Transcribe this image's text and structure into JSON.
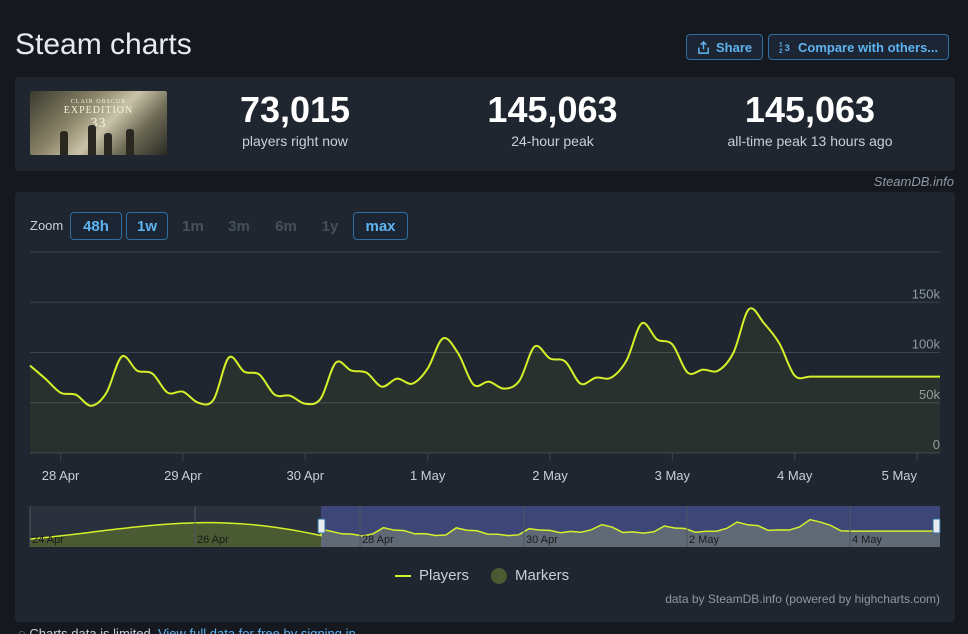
{
  "page": {
    "title": "Steam charts"
  },
  "header_buttons": {
    "share_label": "Share",
    "compare_label": "Compare with others..."
  },
  "stats": {
    "current": {
      "value": "73,015",
      "label": "players right now"
    },
    "peak24": {
      "value": "145,063",
      "label": "24-hour peak"
    },
    "alltime": {
      "value": "145,063",
      "label": "all-time peak 13 hours ago"
    }
  },
  "thumbnail": {
    "brand": "CLAIR OBSCUR",
    "title": "EXPEDITION",
    "number": "33"
  },
  "credit_top": "SteamDB.info",
  "zoom": {
    "label": "Zoom",
    "buttons": [
      {
        "label": "48h",
        "state": "enabled"
      },
      {
        "label": "1w",
        "state": "enabled"
      },
      {
        "label": "1m",
        "state": "disabled"
      },
      {
        "label": "3m",
        "state": "disabled"
      },
      {
        "label": "6m",
        "state": "disabled"
      },
      {
        "label": "1y",
        "state": "disabled"
      },
      {
        "label": "max",
        "state": "enabled"
      }
    ]
  },
  "chart_data": {
    "type": "line",
    "series": [
      {
        "name": "Players",
        "color": "#d4f12a",
        "x": [
          "27 Apr 18:00",
          "27 Apr 21:00",
          "28 Apr 00:00",
          "28 Apr 03:00",
          "28 Apr 06:00",
          "28 Apr 09:00",
          "28 Apr 12:00",
          "28 Apr 15:00",
          "28 Apr 18:00",
          "28 Apr 21:00",
          "29 Apr 00:00",
          "29 Apr 03:00",
          "29 Apr 06:00",
          "29 Apr 09:00",
          "29 Apr 12:00",
          "29 Apr 15:00",
          "29 Apr 18:00",
          "29 Apr 21:00",
          "30 Apr 00:00",
          "30 Apr 03:00",
          "30 Apr 06:00",
          "30 Apr 09:00",
          "30 Apr 12:00",
          "30 Apr 15:00",
          "30 Apr 18:00",
          "30 Apr 21:00",
          "1 May 00:00",
          "1 May 03:00",
          "1 May 06:00",
          "1 May 09:00",
          "1 May 12:00",
          "1 May 15:00",
          "1 May 18:00",
          "1 May 21:00",
          "2 May 00:00",
          "2 May 03:00",
          "2 May 06:00",
          "2 May 09:00",
          "2 May 12:00",
          "2 May 15:00",
          "2 May 18:00",
          "2 May 21:00",
          "3 May 00:00",
          "3 May 03:00",
          "3 May 06:00",
          "3 May 09:00",
          "3 May 12:00",
          "3 May 15:00",
          "3 May 18:00",
          "3 May 21:00",
          "4 May 00:00",
          "4 May 03:00",
          "4 May 06:00",
          "4 May 09:00",
          "4 May 12:00",
          "4 May 15:00",
          "4 May 18:00",
          "4 May 21:00",
          "5 May 00:00",
          "5 May 03:00",
          "5 May 06:00"
        ],
        "y": [
          87000,
          74000,
          60000,
          58000,
          47000,
          60000,
          96000,
          82000,
          79000,
          60000,
          61000,
          50000,
          53000,
          95000,
          81000,
          78000,
          58000,
          57000,
          49000,
          54000,
          90000,
          82000,
          80000,
          66000,
          74000,
          69000,
          84000,
          114000,
          99000,
          68000,
          71000,
          64000,
          72000,
          106000,
          94000,
          91000,
          69000,
          75000,
          75000,
          92000,
          129000,
          113000,
          108000,
          80000,
          83000,
          82000,
          100000,
          143000,
          129000,
          109000,
          77000,
          76000,
          76000,
          76000,
          76000,
          76000,
          76000,
          76000,
          76000,
          76000,
          76000
        ]
      }
    ],
    "x_ticks": [
      "28 Apr",
      "29 Apr",
      "30 Apr",
      "1 May",
      "2 May",
      "3 May",
      "4 May",
      "5 May"
    ],
    "y_ticks": [
      "0",
      "50k",
      "100k",
      "150k"
    ],
    "ylim": [
      0,
      200000
    ],
    "grid": true,
    "navigator": {
      "ticks": [
        "24 Apr",
        "26 Apr",
        "28 Apr",
        "30 Apr",
        "2 May",
        "4 May"
      ],
      "selected_range": [
        "27 Apr 18:00",
        "5 May 06:00"
      ]
    },
    "legend": [
      {
        "label": "Players",
        "color": "#d4f12a",
        "kind": "line"
      },
      {
        "label": "Markers",
        "color": "#4a5a33",
        "kind": "dot"
      }
    ]
  },
  "credit_bottom": "data by SteamDB.info (powered by highcharts.com)",
  "footer": {
    "text": "Charts data is limited.",
    "link": "View full data for free by signing in"
  },
  "colors": {
    "accent": "#5fb3f0",
    "line": "#d4f12a",
    "panel": "#1f2630",
    "background": "#15191f"
  }
}
